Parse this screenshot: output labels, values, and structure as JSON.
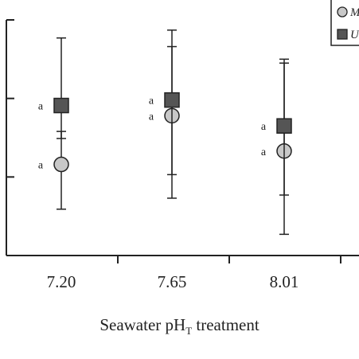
{
  "chart_data": {
    "type": "scatter",
    "title": "",
    "xlabel": "Seawater pH",
    "xlabel_subscript": "T",
    "xlabel_suffix": " treatment",
    "ylabel": "",
    "categories": [
      "7.20",
      "7.65",
      "8.01"
    ],
    "y_axis_ticks_labeled": false,
    "legend": {
      "placement": "top-right",
      "entries": [
        {
          "marker": "circle",
          "label": "M"
        },
        {
          "marker": "square",
          "label": "U"
        }
      ]
    },
    "series": [
      {
        "marker": "circle",
        "fill": "#c8c8c8",
        "values": [
          0.58,
          0.89,
          0.665
        ],
        "error_low": [
          0.295,
          0.365,
          0.135
        ],
        "error_high": [
          0.79,
          1.33,
          1.25
        ],
        "labels": [
          "a",
          "a",
          "a"
        ]
      },
      {
        "marker": "square",
        "fill": "#555555",
        "values": [
          0.955,
          0.99,
          0.825
        ],
        "error_low": [
          0.745,
          0.515,
          0.385
        ],
        "error_high": [
          1.385,
          1.435,
          1.225
        ],
        "labels": [
          "a",
          "a",
          "a"
        ]
      }
    ],
    "ylim": [
      0,
      1.5
    ],
    "y_ticks": [
      0.5,
      1.0,
      1.5
    ],
    "grid": false
  }
}
